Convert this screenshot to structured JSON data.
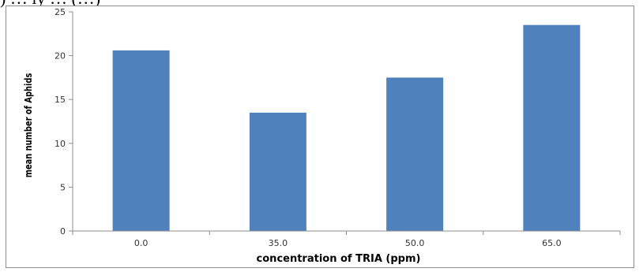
{
  "header_fragment": ") … ly … (…)",
  "chart_data": {
    "type": "bar",
    "categories": [
      "0.0",
      "35.0",
      "50.0",
      "65.0"
    ],
    "values": [
      20.6,
      13.5,
      17.5,
      23.5
    ],
    "xlabel": "concentration of TRIA (ppm)",
    "ylabel": "mean number of Aphids",
    "ylim": [
      0,
      25
    ],
    "yticks": [
      "0",
      "5",
      "10",
      "15",
      "20",
      "25"
    ],
    "bar_color": "#4f81bd",
    "axis_color": "#8c8c8c",
    "grid": false,
    "legend": "none"
  }
}
